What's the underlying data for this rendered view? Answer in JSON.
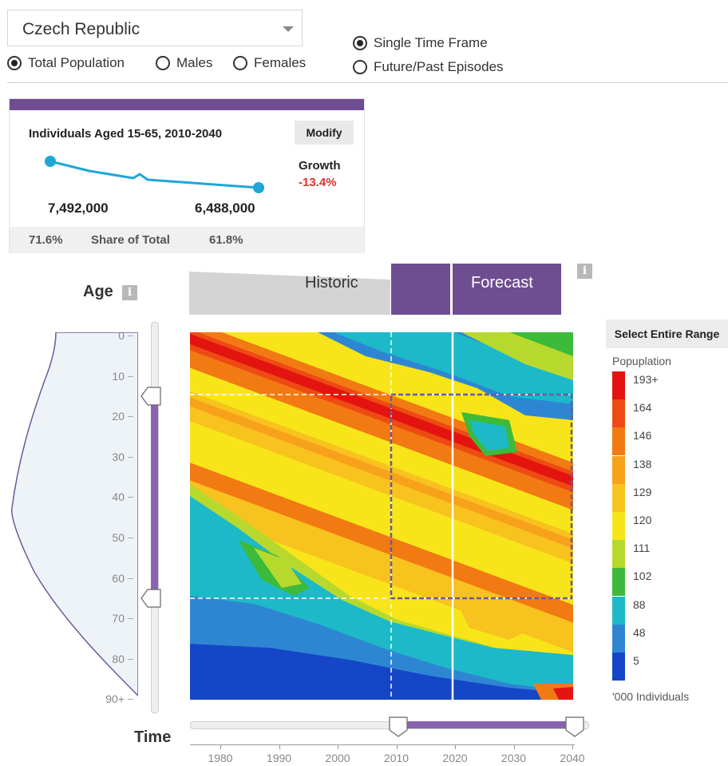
{
  "country_select": {
    "value": "Czech Republic"
  },
  "population_type": [
    {
      "label": "Total Population",
      "selected": true
    },
    {
      "label": "Males",
      "selected": false
    },
    {
      "label": "Females",
      "selected": false
    }
  ],
  "time_mode": [
    {
      "label": "Single Time Frame",
      "selected": true
    },
    {
      "label": "Future/Past Episodes",
      "selected": false
    }
  ],
  "summary": {
    "title": "Individuals Aged 15-65, 2010-2040",
    "modify_label": "Modify",
    "growth_label": "Growth",
    "growth_value": "-13.4%",
    "start_value": "7,492,000",
    "end_value": "6,488,000",
    "share_start": "71.6%",
    "share_label": "Share of Total",
    "share_end": "61.8%",
    "accent": "#6f4d91",
    "line_color": "#1fa7d6"
  },
  "chart": {
    "age_label": "Age",
    "time_label": "Time",
    "info_icon": "info-icon",
    "historic_label": "Historic",
    "forecast_label": "Forecast",
    "age_ticks": [
      "0",
      "10",
      "20",
      "30",
      "40",
      "50",
      "60",
      "70",
      "80",
      "90+"
    ],
    "year_ticks": [
      "1980",
      "1990",
      "2000",
      "2010",
      "2020",
      "2030",
      "2040"
    ],
    "age_range": [
      15,
      65
    ],
    "year_range": [
      2010,
      2040
    ],
    "present_year": 2020,
    "age_slider": {
      "min": 15,
      "max": 65
    },
    "time_slider": {
      "min": 2010,
      "max": 2040
    }
  },
  "legend": {
    "select_all_label": "Select Entire Range",
    "title": "Popuplation",
    "unit": "'000 Individuals",
    "items": [
      {
        "label": "193+",
        "color": "#e3140f"
      },
      {
        "label": "164",
        "color": "#ee4a14"
      },
      {
        "label": "146",
        "color": "#f27a12"
      },
      {
        "label": "138",
        "color": "#f7a21a"
      },
      {
        "label": "129",
        "color": "#f8c21f"
      },
      {
        "label": "120",
        "color": "#f7e51a"
      },
      {
        "label": "111",
        "color": "#b7d92e"
      },
      {
        "label": "102",
        "color": "#3cba3a"
      },
      {
        "label": "88",
        "color": "#1db9c9"
      },
      {
        "label": "48",
        "color": "#2e86d3"
      },
      {
        "label": "5",
        "color": "#1546c8"
      }
    ]
  }
}
